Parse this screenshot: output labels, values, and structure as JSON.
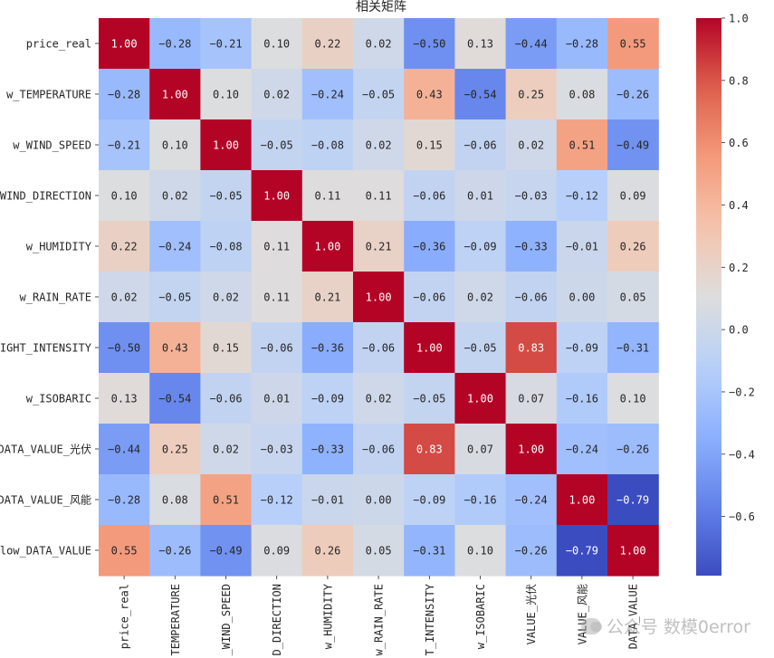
{
  "chart_data": {
    "type": "heatmap",
    "title": "相关矩阵",
    "row_labels": [
      "price_real",
      "w_TEMPERATURE",
      "w_WIND_SPEED",
      "WIND_DIRECTION",
      "w_HUMIDITY",
      "w_RAIN_RATE",
      "LIGHT_INTENSITY",
      "w_ISOBARIC",
      "DATA_VALUE_光伏",
      "DATA_VALUE_风能",
      "flow_DATA_VALUE"
    ],
    "col_labels": [
      "price_real",
      "TEMPERATURE",
      "_WIND_SPEED",
      "D_DIRECTION",
      "w_HUMIDITY",
      "w_RAIN_RATE",
      "T_INTENSITY",
      "w_ISOBARIC",
      "VALUE_光伏",
      "VALUE_风能",
      "DATA_VALUE"
    ],
    "matrix": [
      [
        1.0,
        -0.28,
        -0.21,
        0.1,
        0.22,
        0.02,
        -0.5,
        0.13,
        -0.44,
        -0.28,
        0.55
      ],
      [
        -0.28,
        1.0,
        0.1,
        0.02,
        -0.24,
        -0.05,
        0.43,
        -0.54,
        0.25,
        0.08,
        -0.26
      ],
      [
        -0.21,
        0.1,
        1.0,
        -0.05,
        -0.08,
        0.02,
        0.15,
        -0.06,
        0.02,
        0.51,
        -0.49
      ],
      [
        0.1,
        0.02,
        -0.05,
        1.0,
        0.11,
        0.11,
        -0.06,
        0.01,
        -0.03,
        -0.12,
        0.09
      ],
      [
        0.22,
        -0.24,
        -0.08,
        0.11,
        1.0,
        0.21,
        -0.36,
        -0.09,
        -0.33,
        -0.01,
        0.26
      ],
      [
        0.02,
        -0.05,
        0.02,
        0.11,
        0.21,
        1.0,
        -0.06,
        0.02,
        -0.06,
        0.0,
        0.05
      ],
      [
        -0.5,
        0.43,
        0.15,
        -0.06,
        -0.36,
        -0.06,
        1.0,
        -0.05,
        0.83,
        -0.09,
        -0.31
      ],
      [
        0.13,
        -0.54,
        -0.06,
        0.01,
        -0.09,
        0.02,
        -0.05,
        1.0,
        0.07,
        -0.16,
        0.1
      ],
      [
        -0.44,
        0.25,
        0.02,
        -0.03,
        -0.33,
        -0.06,
        0.83,
        0.07,
        1.0,
        -0.24,
        -0.26
      ],
      [
        -0.28,
        0.08,
        0.51,
        -0.12,
        -0.01,
        0.0,
        -0.09,
        -0.16,
        -0.24,
        1.0,
        -0.79
      ],
      [
        0.55,
        -0.26,
        -0.49,
        0.09,
        0.26,
        0.05,
        -0.31,
        0.1,
        -0.26,
        -0.79,
        1.0
      ]
    ],
    "colormap": "coolwarm",
    "vmin": -0.79,
    "vmax": 1.0,
    "colorbar_ticks": [
      1.0,
      0.8,
      0.6,
      0.4,
      0.2,
      0.0,
      -0.2,
      -0.4,
      -0.6
    ],
    "colorbar_tick_labels": [
      "1.0",
      "0.8",
      "0.6",
      "0.4",
      "0.2",
      "0.0",
      "−0.2",
      "−0.4",
      "−0.6"
    ],
    "annotation_format": "2 decimals"
  },
  "watermark": {
    "label_a": "公众号",
    "label_b": "数模0error"
  },
  "colors": {
    "text_dark": "#262626",
    "text_light": "#ffffff"
  }
}
